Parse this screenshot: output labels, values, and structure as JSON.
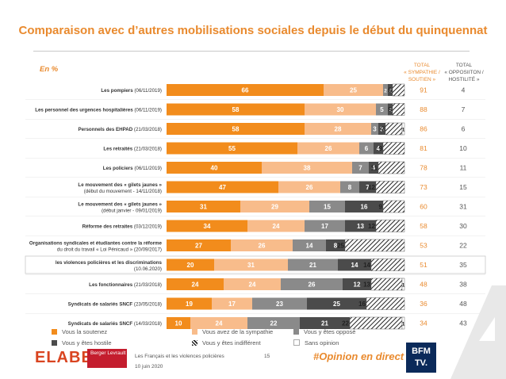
{
  "header": {
    "title": "Comparaison avec d’autres mobilisations sociales depuis le début du quinquennat",
    "unit": "En %",
    "col_sympathie": [
      "TOTAL",
      "« SYMPATHIE /",
      "SOUTIEN »"
    ],
    "col_opposition": [
      "TOTAL",
      "« OPPOSIITON /",
      "HOSTILITÉ »"
    ]
  },
  "colors": {
    "soutien": "#f28c1c",
    "sympathie": "#f8bc8b",
    "oppose": "#8a8a8a",
    "hostile": "#4b4b4b",
    "indifferent": "#ffffff",
    "sans_opinion": "#ffffff",
    "title": "#e98a2e",
    "total_sympathie": "#e98a2e",
    "total_opposition": "#555555"
  },
  "chart_data": {
    "type": "bar",
    "orientation": "horizontal",
    "stacked": true,
    "xlim": [
      0,
      100
    ],
    "series": [
      {
        "name": "Vous la soutenez",
        "values": [
          66,
          58,
          58,
          55,
          40,
          47,
          31,
          34,
          27,
          20,
          24,
          19,
          10
        ]
      },
      {
        "name": "Vous avez de la sympathie",
        "values": [
          25,
          30,
          28,
          26,
          38,
          26,
          29,
          24,
          26,
          31,
          24,
          17,
          24
        ]
      },
      {
        "name": "Vous y êtes opposé",
        "values": [
          2,
          5,
          3,
          6,
          7,
          8,
          15,
          17,
          14,
          21,
          26,
          23,
          22
        ]
      },
      {
        "name": "Vous y êtes hostile",
        "values": [
          2,
          2,
          3,
          4,
          4,
          7,
          16,
          13,
          8,
          14,
          12,
          25,
          21
        ]
      },
      {
        "name": "Vous y êtes indifférent",
        "values": [
          5,
          5,
          7,
          9,
          11,
          12,
          9,
          12,
          25,
          14,
          13,
          16,
          22
        ]
      },
      {
        "name": "Sans opinion",
        "values": [
          0,
          0,
          1,
          0,
          0,
          0,
          0,
          0,
          0,
          0,
          1,
          0,
          1
        ]
      }
    ],
    "categories": [
      {
        "label": "Les pompiers",
        "date": "(06/11/2019)",
        "tot_sym": "91",
        "tot_opp": "4"
      },
      {
        "label": "Les personnel des urgences hospitalières",
        "date": "(06/11/2019)",
        "tot_sym": "88",
        "tot_opp": "7"
      },
      {
        "label": "Personnels des EHPAD",
        "date": "(21/03/2018)",
        "tot_sym": "86",
        "tot_opp": "6"
      },
      {
        "label": "Les retraités",
        "date": "(21/03/2018)",
        "tot_sym": "81",
        "tot_opp": "10"
      },
      {
        "label": "Les policiers",
        "date": "(06/11/2019)",
        "tot_sym": "78",
        "tot_opp": "11"
      },
      {
        "label": "Le mouvement des « gilets jaunes »",
        "label2": "(début du mouvement - 14/11/2018)",
        "tot_sym": "73",
        "tot_opp": "15"
      },
      {
        "label": "Le mouvement des « gilets jaunes »",
        "label2": "(début janvier - 09/01/2019)",
        "tot_sym": "60",
        "tot_opp": "31"
      },
      {
        "label": "Réforme des retraites",
        "date": "(03/12/2019)",
        "tot_sym": "58",
        "tot_opp": "30"
      },
      {
        "label": "Organisations syndicales et étudiantes contre la réforme",
        "label2": "du droit du travail « Loi Pénicaud » (20/09/2017)",
        "tot_sym": "53",
        "tot_opp": "22"
      },
      {
        "label": "les violences policières et les discriminations",
        "label2": "(10.06.2020)",
        "tot_sym": "51",
        "tot_opp": "35",
        "highlight": true
      },
      {
        "label": "Les fonctionnaires",
        "date": "(21/03/2018)",
        "tot_sym": "48",
        "tot_opp": "38"
      },
      {
        "label": "Syndicats de salariés SNCF",
        "date": "(23/05/2018)",
        "tot_sym": "36",
        "tot_opp": "48"
      },
      {
        "label": "Syndicats de salariés SNCF",
        "date": "(14/03/2018)",
        "tot_sym": "34",
        "tot_opp": "43"
      }
    ]
  },
  "legend": [
    "Vous la soutenez",
    "Vous avez de la sympathie",
    "Vous y êtes opposé",
    "Vous y êtes hostile",
    "Vous y êtes indifférent",
    "Sans opinion"
  ],
  "footer": {
    "source": "Les Français et les violences policières",
    "date": "10 juin 2020",
    "page": "15",
    "hashtag": "#Opinion en direct",
    "logo_elabe": "ELABE",
    "logo_berger": "Berger Levrault",
    "logo_bfm": "BFM TV."
  }
}
